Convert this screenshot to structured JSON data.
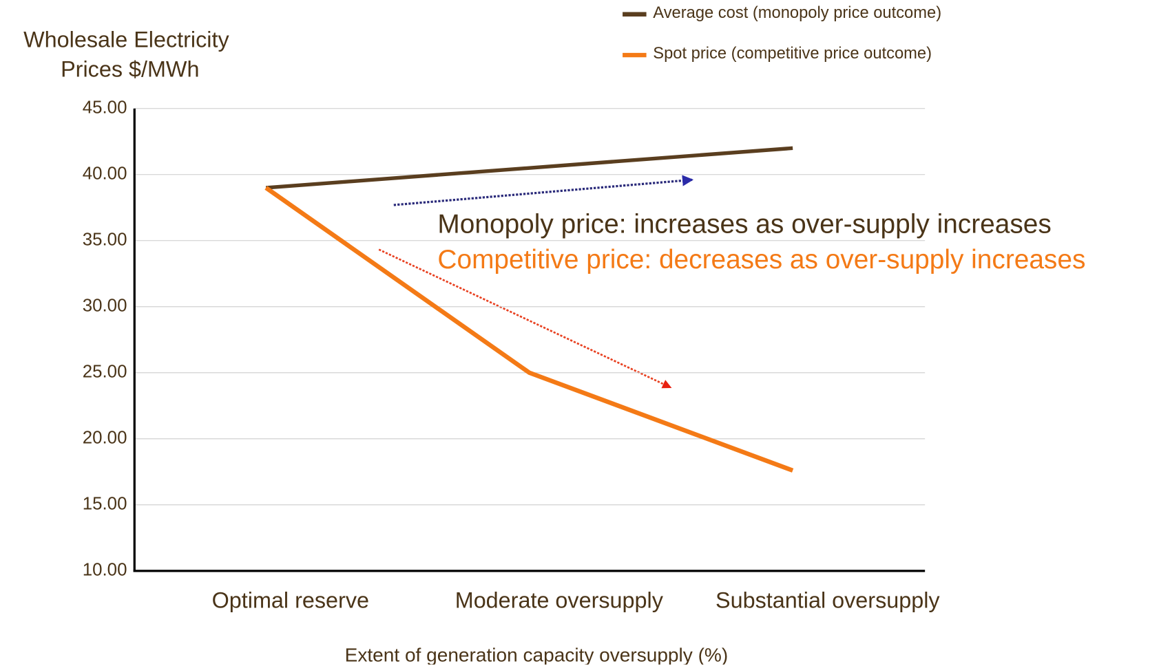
{
  "chart_data": {
    "type": "line",
    "ylabel": "Wholesale Electricity Prices $/MWh",
    "xlabel": "Extent of generation capacity oversupply (%)",
    "categories": [
      "Optimal reserve",
      "Moderate oversupply",
      "Substantial oversupply"
    ],
    "series": [
      {
        "name": "Average cost (monopoly price outcome)",
        "color": "#5a3e1f",
        "values": [
          39,
          40.5,
          42
        ]
      },
      {
        "name": "Spot price (competitive price outcome)",
        "color": "#f47a16",
        "values": [
          39,
          25,
          17.6
        ]
      }
    ],
    "ylim": [
      10,
      45
    ],
    "yticks": [
      {
        "value": 10,
        "label": "10.00"
      },
      {
        "value": 15,
        "label": "15.00"
      },
      {
        "value": 20,
        "label": "20.00"
      },
      {
        "value": 25,
        "label": "25.00"
      },
      {
        "value": 30,
        "label": "30.00"
      },
      {
        "value": 35,
        "label": "35.00"
      },
      {
        "value": 40,
        "label": "40.00"
      },
      {
        "value": 45,
        "label": "45.00"
      }
    ],
    "grid": true,
    "annotations": [
      "Monopoly price: increases as over-supply increases",
      "Competitive price: decreases as over-supply increases"
    ]
  }
}
